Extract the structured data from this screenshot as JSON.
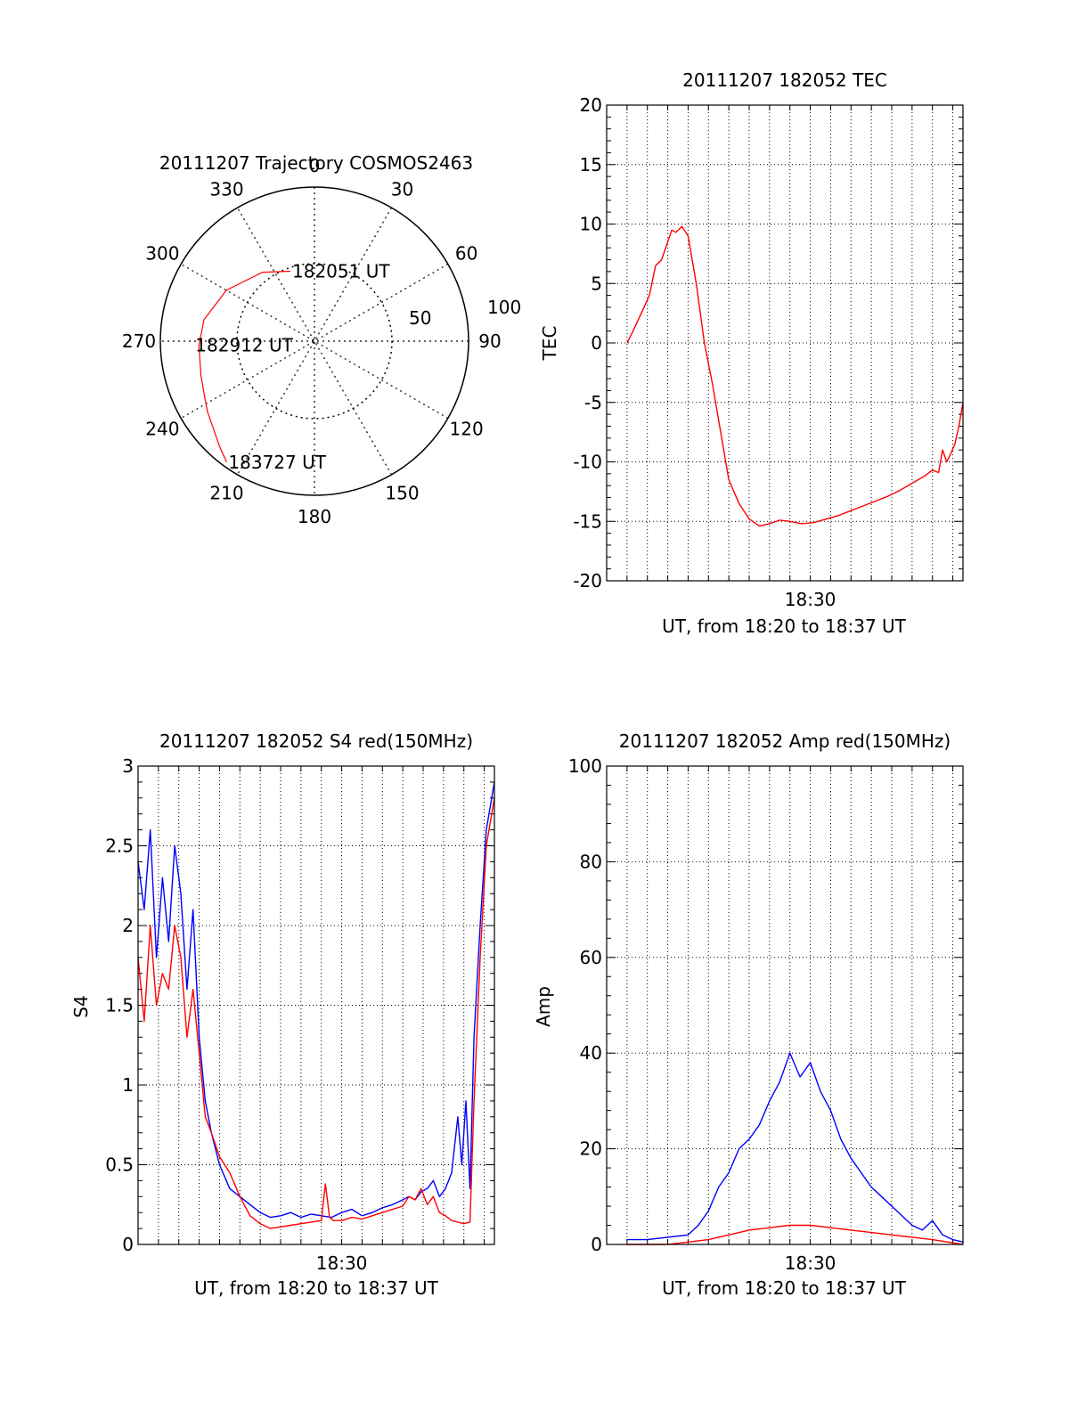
{
  "chart_data": [
    {
      "id": "trajectory",
      "type": "polar",
      "title": "20111207 Trajectory COSMOS2463",
      "azimuth_labels": [
        "0",
        "30",
        "60",
        "90",
        "120",
        "150",
        "180",
        "210",
        "240",
        "270",
        "300",
        "330"
      ],
      "radius_labels": [
        "50",
        "100"
      ],
      "series_color": "#ff0000",
      "track": [
        {
          "az": 341,
          "r": 48
        },
        {
          "az": 323,
          "r": 56
        },
        {
          "az": 300,
          "r": 66
        },
        {
          "az": 281,
          "r": 73
        },
        {
          "az": 268,
          "r": 75
        },
        {
          "az": 253,
          "r": 77
        },
        {
          "az": 237,
          "r": 83
        },
        {
          "az": 222,
          "r": 92
        },
        {
          "az": 216,
          "r": 97
        }
      ],
      "annotations": [
        {
          "text": "182051 UT",
          "az": 341,
          "r": 48
        },
        {
          "text": "182912 UT",
          "az": 268,
          "r": 75
        },
        {
          "text": "183727 UT",
          "az": 216,
          "r": 97
        }
      ]
    },
    {
      "id": "tec",
      "type": "line",
      "title": "20111207 182052 TEC",
      "xlabel": "UT, from 18:20 to 18:37 UT",
      "ylabel": "TEC",
      "x_units": "minutes after 18:20",
      "xlim": [
        0,
        17.5
      ],
      "ylim": [
        -20,
        20
      ],
      "yticks": [
        "20",
        "15",
        "10",
        "5",
        "0",
        "-5",
        "-10",
        "-15",
        "-20"
      ],
      "xticks": [
        {
          "at": 10,
          "label": "18:30"
        }
      ],
      "grid": true,
      "series": [
        {
          "color": "#ff0000",
          "x": [
            1.0,
            1.3,
            1.7,
            2.1,
            2.4,
            2.7,
            3.0,
            3.2,
            3.4,
            3.7,
            4.0,
            4.4,
            4.8,
            5.2,
            5.6,
            6.0,
            6.5,
            7.0,
            7.5,
            8.0,
            8.5,
            9.0,
            9.6,
            10.2,
            10.8,
            11.4,
            12.0,
            12.6,
            13.2,
            13.8,
            14.4,
            15.0,
            15.6,
            16.0,
            16.3,
            16.5,
            16.7,
            16.9,
            17.1,
            17.3,
            17.5
          ],
          "y": [
            0.0,
            1.0,
            2.5,
            4.0,
            6.5,
            7.0,
            8.5,
            9.5,
            9.3,
            9.8,
            9.0,
            5.0,
            0.0,
            -3.5,
            -7.5,
            -11.5,
            -13.5,
            -14.8,
            -15.4,
            -15.2,
            -14.9,
            -15.0,
            -15.2,
            -15.1,
            -14.8,
            -14.5,
            -14.1,
            -13.7,
            -13.3,
            -12.9,
            -12.4,
            -11.8,
            -11.2,
            -10.7,
            -10.9,
            -9.0,
            -10.0,
            -9.3,
            -8.5,
            -7.0,
            -5.0
          ]
        }
      ]
    },
    {
      "id": "s4",
      "type": "line",
      "title": "20111207 182052 S4 red(150MHz)",
      "xlabel": "UT, from 18:20 to 18:37 UT",
      "ylabel": "S4",
      "x_units": "minutes after 18:20",
      "xlim": [
        0,
        17.5
      ],
      "ylim": [
        0,
        3
      ],
      "yticks": [
        "3",
        "2.5",
        "2",
        "1.5",
        "1",
        "0.5",
        "0"
      ],
      "xticks": [
        {
          "at": 10,
          "label": "18:30"
        }
      ],
      "grid": true,
      "series": [
        {
          "color": "#0000ff",
          "x": [
            0.0,
            0.3,
            0.6,
            0.9,
            1.2,
            1.5,
            1.8,
            2.1,
            2.4,
            2.7,
            3.0,
            3.3,
            3.6,
            4.0,
            4.5,
            5.0,
            5.5,
            6.0,
            6.5,
            7.0,
            7.5,
            8.0,
            8.5,
            9.0,
            9.5,
            10.0,
            10.5,
            11.0,
            11.5,
            12.0,
            12.5,
            13.0,
            13.3,
            13.6,
            13.9,
            14.2,
            14.5,
            14.8,
            15.1,
            15.4,
            15.7,
            15.9,
            16.1,
            16.3,
            16.5,
            16.8,
            17.1,
            17.5
          ],
          "y": [
            2.4,
            2.1,
            2.6,
            1.8,
            2.3,
            1.9,
            2.5,
            2.2,
            1.6,
            2.1,
            1.3,
            0.9,
            0.7,
            0.5,
            0.35,
            0.3,
            0.25,
            0.2,
            0.17,
            0.18,
            0.2,
            0.17,
            0.19,
            0.18,
            0.17,
            0.2,
            0.22,
            0.18,
            0.2,
            0.23,
            0.25,
            0.28,
            0.3,
            0.28,
            0.33,
            0.35,
            0.4,
            0.3,
            0.35,
            0.45,
            0.8,
            0.5,
            0.9,
            0.35,
            1.3,
            2.0,
            2.6,
            2.9
          ]
        },
        {
          "color": "#ff0000",
          "x": [
            0.0,
            0.3,
            0.6,
            0.9,
            1.2,
            1.5,
            1.8,
            2.1,
            2.4,
            2.7,
            3.0,
            3.3,
            3.6,
            4.0,
            4.5,
            5.0,
            5.5,
            6.0,
            6.5,
            7.0,
            7.5,
            8.0,
            8.5,
            9.0,
            9.2,
            9.4,
            9.6,
            10.0,
            10.5,
            11.0,
            11.5,
            12.0,
            12.5,
            13.0,
            13.3,
            13.6,
            13.9,
            14.2,
            14.5,
            14.8,
            15.1,
            15.4,
            15.7,
            16.0,
            16.3,
            16.5,
            16.8,
            17.1,
            17.5
          ],
          "y": [
            1.8,
            1.4,
            2.0,
            1.5,
            1.7,
            1.6,
            2.0,
            1.8,
            1.3,
            1.6,
            1.2,
            0.8,
            0.7,
            0.55,
            0.45,
            0.3,
            0.18,
            0.13,
            0.1,
            0.11,
            0.12,
            0.13,
            0.14,
            0.15,
            0.38,
            0.17,
            0.15,
            0.15,
            0.17,
            0.16,
            0.18,
            0.2,
            0.22,
            0.24,
            0.3,
            0.28,
            0.35,
            0.25,
            0.3,
            0.2,
            0.18,
            0.15,
            0.14,
            0.13,
            0.14,
            0.9,
            1.8,
            2.5,
            2.8
          ]
        }
      ]
    },
    {
      "id": "amp",
      "type": "line",
      "title": "20111207 182052 Amp red(150MHz)",
      "xlabel": "UT, from 18:20 to 18:37 UT",
      "ylabel": "Amp",
      "x_units": "minutes after 18:20",
      "xlim": [
        0,
        17.5
      ],
      "ylim": [
        0,
        100
      ],
      "yticks": [
        "100",
        "80",
        "60",
        "40",
        "20",
        "0"
      ],
      "xticks": [
        {
          "at": 10,
          "label": "18:30"
        }
      ],
      "grid": true,
      "series": [
        {
          "color": "#0000ff",
          "x": [
            1.0,
            2.0,
            3.0,
            4.0,
            4.5,
            5.0,
            5.5,
            6.0,
            6.5,
            7.0,
            7.5,
            8.0,
            8.5,
            9.0,
            9.5,
            10.0,
            10.5,
            11.0,
            11.5,
            12.0,
            12.5,
            13.0,
            13.5,
            14.0,
            14.5,
            15.0,
            15.5,
            16.0,
            16.5,
            17.0,
            17.5
          ],
          "y": [
            1,
            1,
            1.5,
            2,
            4,
            7,
            12,
            15,
            20,
            22,
            25,
            30,
            34,
            40,
            35,
            38,
            32,
            28,
            22,
            18,
            15,
            12,
            10,
            8,
            6,
            4,
            3,
            5,
            2,
            1,
            0.5
          ]
        },
        {
          "color": "#ff0000",
          "x": [
            1.0,
            3.0,
            4.0,
            5.0,
            6.0,
            7.0,
            8.0,
            9.0,
            10.0,
            11.0,
            12.0,
            13.0,
            14.0,
            15.0,
            16.0,
            17.5
          ],
          "y": [
            0,
            0,
            0.5,
            1.0,
            2.0,
            3.0,
            3.5,
            4.0,
            4.0,
            3.5,
            3.0,
            2.5,
            2.0,
            1.5,
            1.0,
            0.0
          ]
        }
      ]
    }
  ]
}
